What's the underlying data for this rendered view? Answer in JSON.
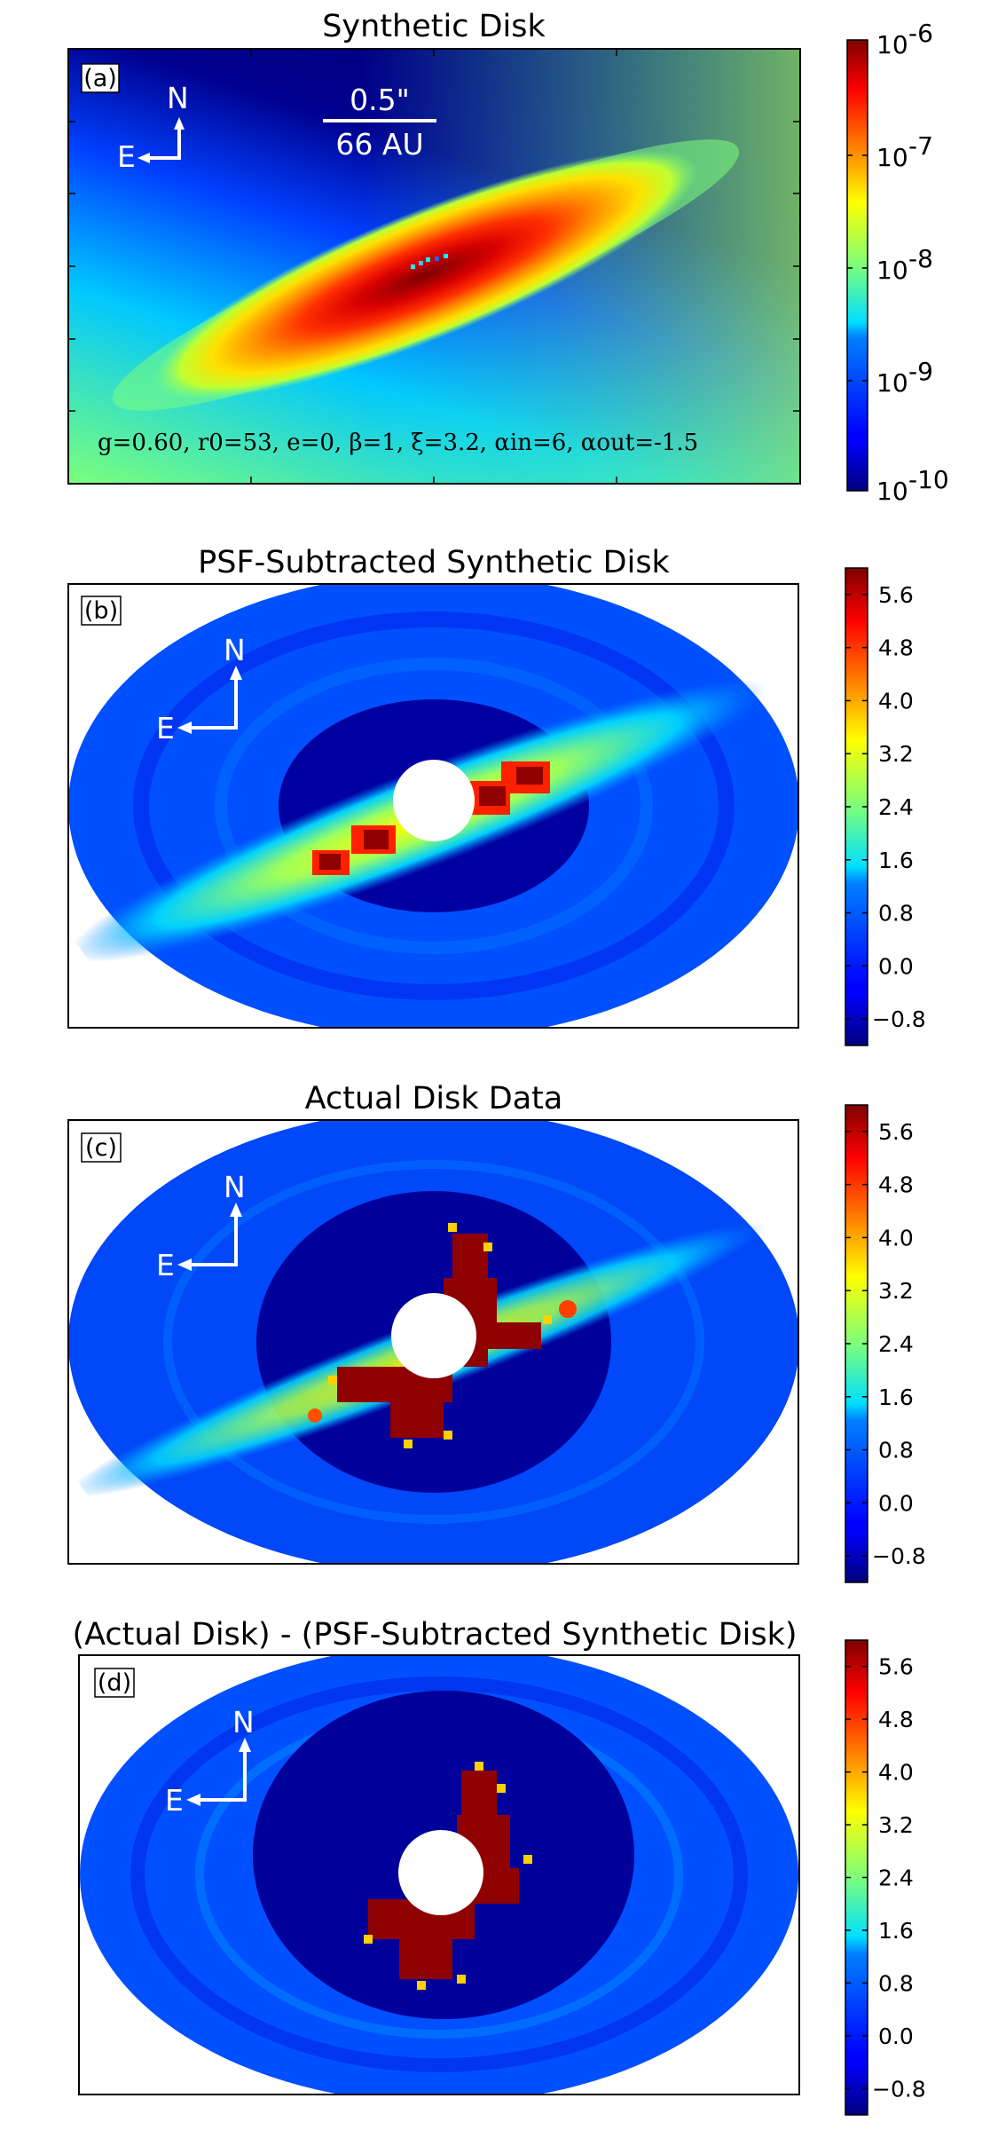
{
  "chart_data": [
    {
      "type": "heatmap",
      "id": "a",
      "title": "Synthetic Disk",
      "panel_label": "(a)",
      "compass": {
        "north": "N",
        "east": "E"
      },
      "scale_bar": {
        "angular": "0.5\"",
        "physical": "66 AU"
      },
      "parameters_text": "g=0.60, r0=53, e=0, β=1, ξ=3.2, αin=6, αout=-1.5",
      "colorbar": {
        "scale": "log",
        "range": [
          1e-10,
          1e-06
        ],
        "ticks": [
          {
            "base": "10",
            "exp": "-6"
          },
          {
            "base": "10",
            "exp": "-7"
          },
          {
            "base": "10",
            "exp": "-8"
          },
          {
            "base": "10",
            "exp": "-9"
          },
          {
            "base": "10",
            "exp": "-10"
          }
        ]
      },
      "colormap": "jet"
    },
    {
      "type": "heatmap",
      "id": "b",
      "title": "PSF-Subtracted Synthetic Disk",
      "panel_label": "(b)",
      "compass": {
        "north": "N",
        "east": "E"
      },
      "colorbar": {
        "scale": "linear",
        "range": [
          -1.2,
          6.0
        ],
        "ticks": [
          "5.6",
          "4.8",
          "4.0",
          "3.2",
          "2.4",
          "1.6",
          "0.8",
          "0.0",
          "−0.8"
        ]
      },
      "colormap": "jet"
    },
    {
      "type": "heatmap",
      "id": "c",
      "title": "Actual Disk Data",
      "panel_label": "(c)",
      "compass": {
        "north": "N",
        "east": "E"
      },
      "colorbar": {
        "scale": "linear",
        "range": [
          -1.2,
          6.0
        ],
        "ticks": [
          "5.6",
          "4.8",
          "4.0",
          "3.2",
          "2.4",
          "1.6",
          "0.8",
          "0.0",
          "−0.8"
        ]
      },
      "colormap": "jet"
    },
    {
      "type": "heatmap",
      "id": "d",
      "title": "(Actual Disk) - (PSF-Subtracted Synthetic Disk)",
      "panel_label": "(d)",
      "compass": {
        "north": "N",
        "east": "E"
      },
      "colorbar": {
        "scale": "linear",
        "range": [
          -1.2,
          6.0
        ],
        "ticks": [
          "5.6",
          "4.8",
          "4.0",
          "3.2",
          "2.4",
          "1.6",
          "0.8",
          "0.0",
          "−0.8"
        ]
      },
      "colormap": "jet"
    }
  ]
}
